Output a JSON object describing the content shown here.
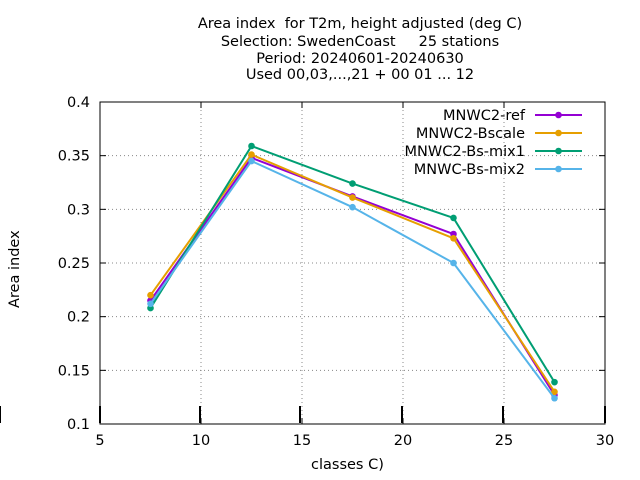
{
  "chart_data": {
    "type": "line",
    "title_lines": [
      "Area index  for T2m, height adjusted (deg C)",
      "Selection: SwedenCoast     25 stations",
      "Period: 20240601-20240630",
      "Used 00,03,...,21 + 00 01 ... 12"
    ],
    "xlabel": "classes C)",
    "ylabel": "Area index",
    "xlim": [
      5,
      30
    ],
    "ylim": [
      0.1,
      0.4
    ],
    "xticks": [
      "5",
      "10",
      "15",
      "20",
      "25",
      "30"
    ],
    "yticks": [
      "0.1",
      "0.15",
      "0.2",
      "0.25",
      "0.3",
      "0.35",
      "0.4"
    ],
    "grid": true,
    "legend_position": "top-right",
    "x": [
      7.5,
      12.5,
      17.5,
      22.5,
      27.5
    ],
    "series": [
      {
        "name": "MNWC2-ref",
        "color": "#9400d3",
        "values": [
          0.215,
          0.348,
          0.312,
          0.277,
          0.127
        ]
      },
      {
        "name": "MNWC2-Bscale",
        "color": "#e69f00",
        "values": [
          0.22,
          0.351,
          0.311,
          0.273,
          0.13
        ]
      },
      {
        "name": "MNWC2-Bs-mix1",
        "color": "#009e73",
        "values": [
          0.208,
          0.359,
          0.324,
          0.292,
          0.139
        ]
      },
      {
        "name": "MNWC-Bs-mix2",
        "color": "#56b4e9",
        "values": [
          0.212,
          0.345,
          0.302,
          0.25,
          0.124
        ]
      }
    ]
  }
}
